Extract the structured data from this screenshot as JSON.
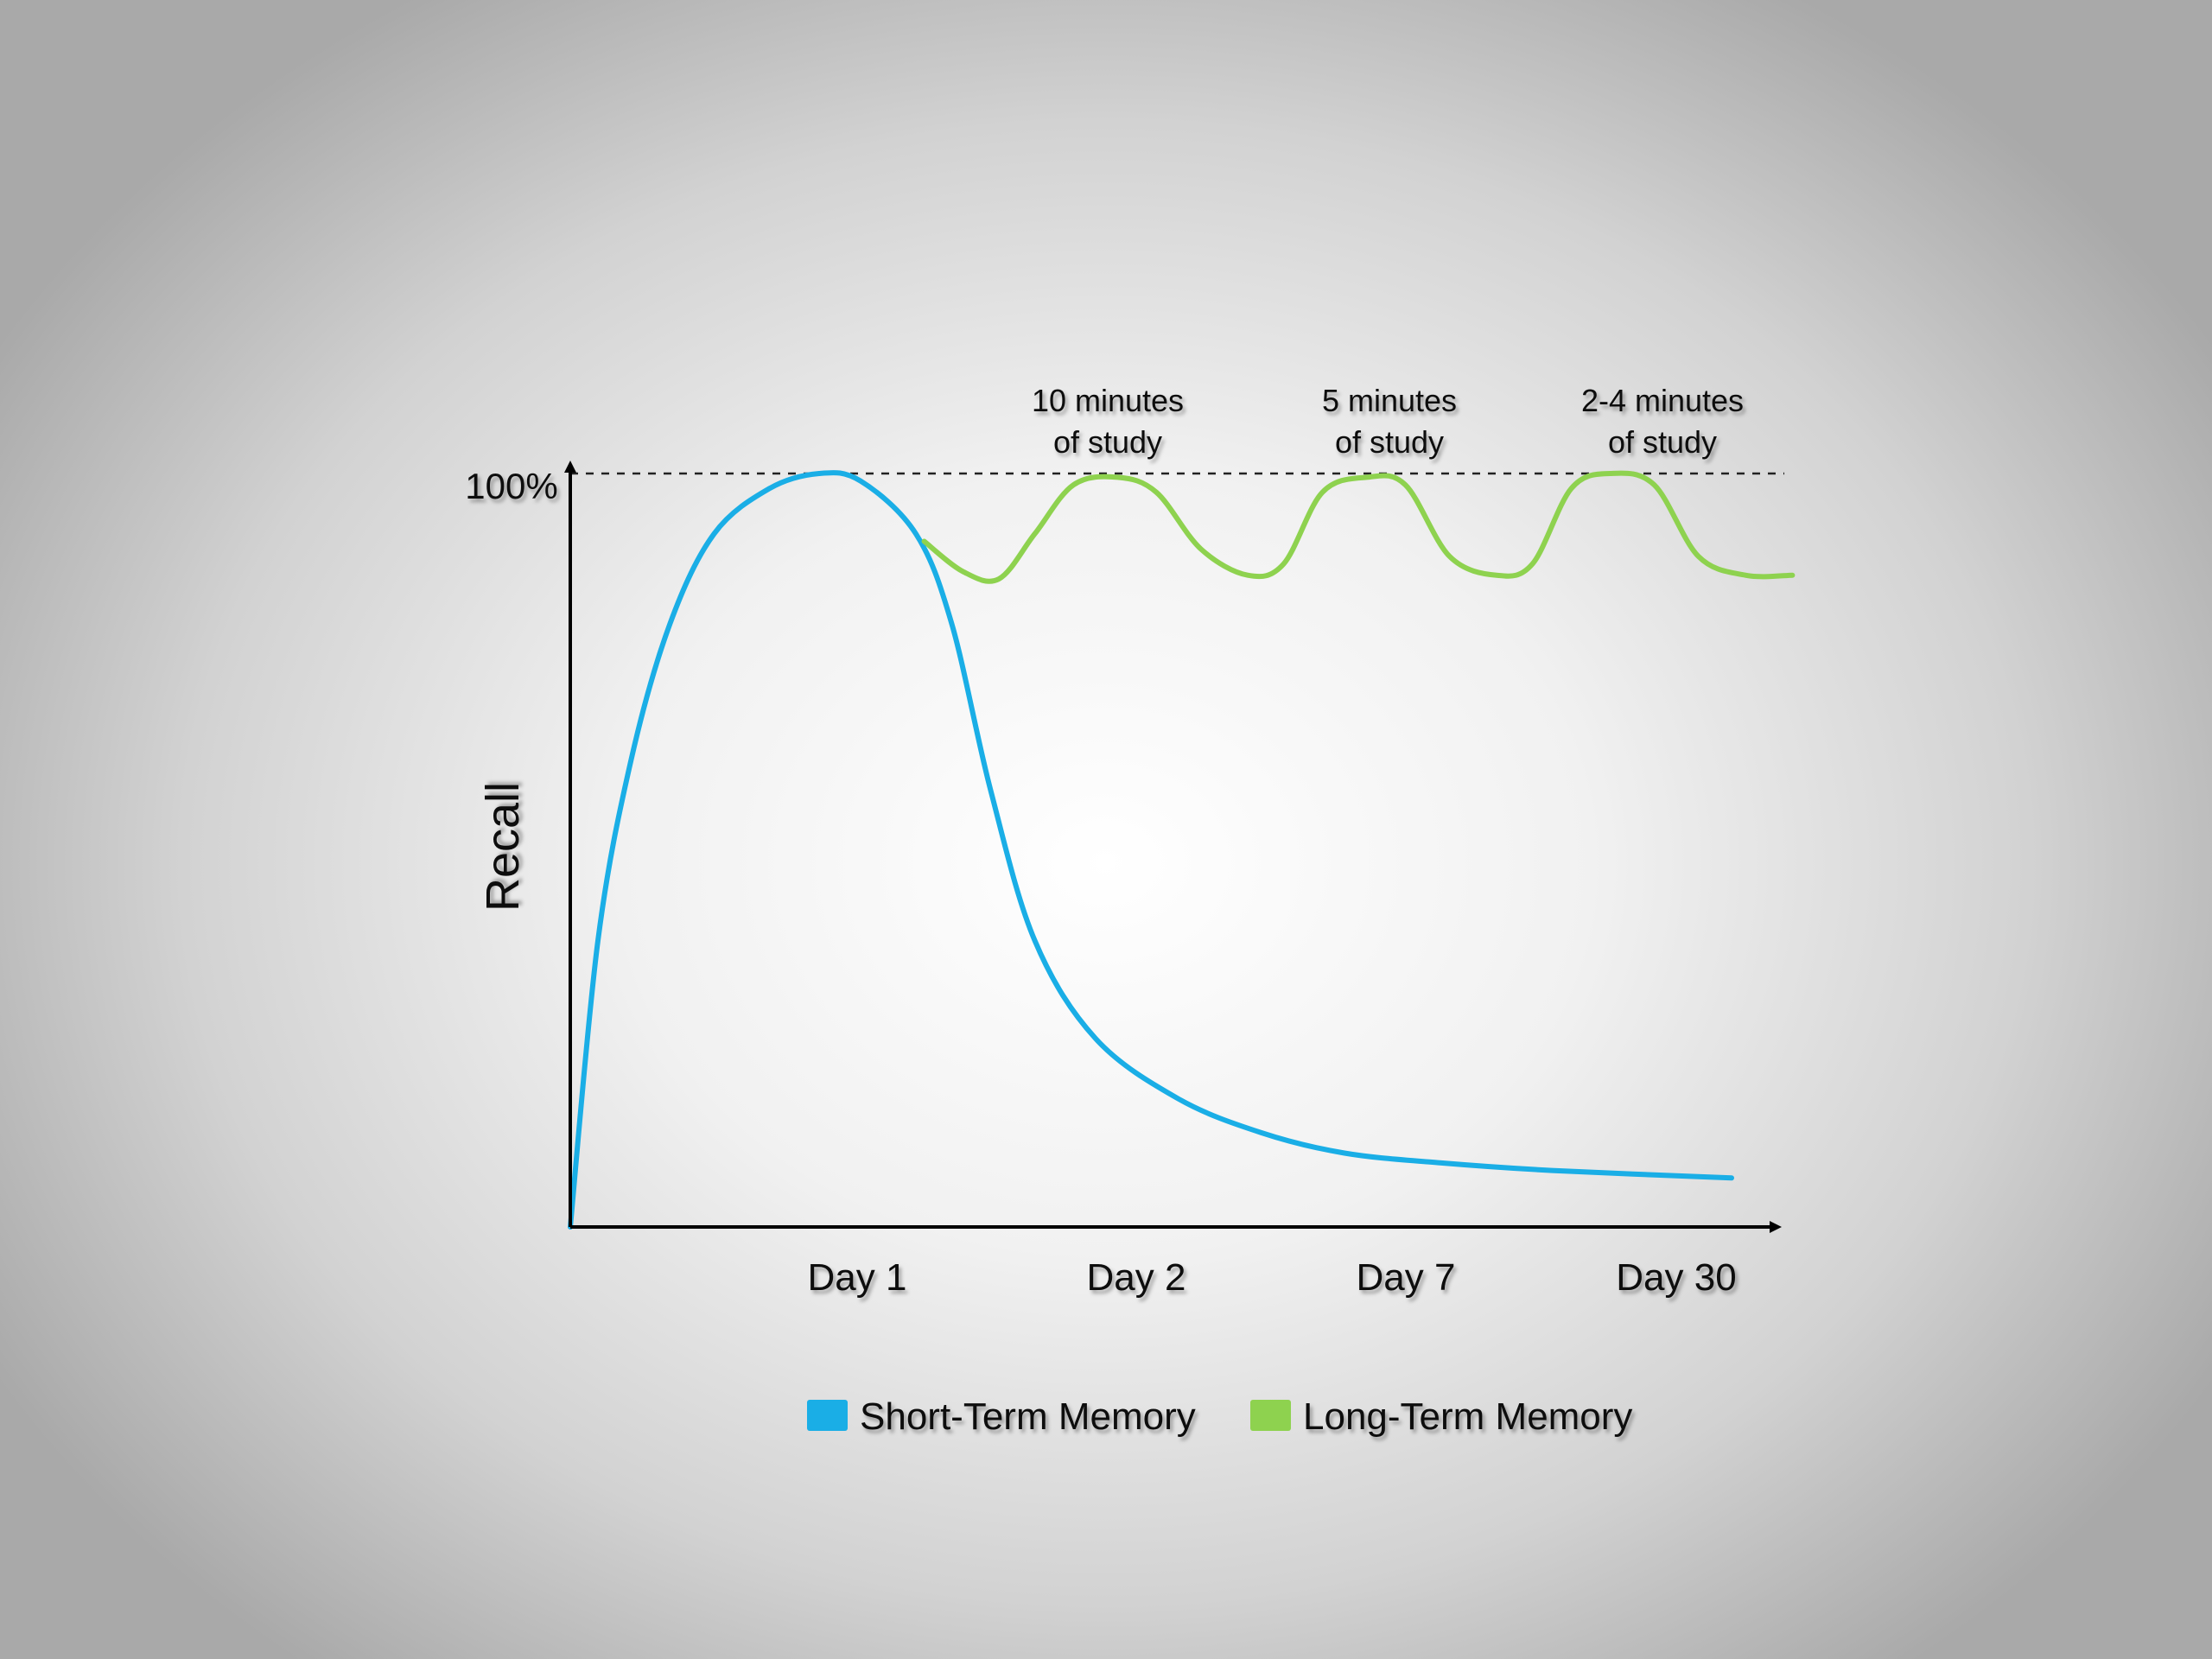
{
  "chart_data": {
    "type": "line",
    "ylabel": "Recall",
    "y_tick_label": "100%",
    "ylim": [
      0,
      100
    ],
    "x_tick_labels": [
      "Day 1",
      "Day 2",
      "Day 7",
      "Day 30"
    ],
    "reference_line": {
      "value": 100,
      "style": "dashed"
    },
    "annotations": [
      {
        "lines": [
          "10 minutes",
          "of study"
        ]
      },
      {
        "lines": [
          "5 minutes",
          "of study"
        ]
      },
      {
        "lines": [
          "2-4 minutes",
          "of study"
        ]
      }
    ],
    "series": [
      {
        "name": "Short-Term Memory",
        "color": "#1aaee6",
        "points": [
          [
            0.0,
            0
          ],
          [
            0.1,
            38
          ],
          [
            0.22,
            62
          ],
          [
            0.36,
            80
          ],
          [
            0.52,
            92
          ],
          [
            0.72,
            98
          ],
          [
            0.9,
            100
          ],
          [
            1.05,
            99
          ],
          [
            1.25,
            92
          ],
          [
            1.38,
            80
          ],
          [
            1.52,
            58
          ],
          [
            1.68,
            38
          ],
          [
            1.9,
            25
          ],
          [
            2.2,
            17
          ],
          [
            2.5,
            12.5
          ],
          [
            2.8,
            9.8
          ],
          [
            3.15,
            8.5
          ],
          [
            3.55,
            7.5
          ],
          [
            4.2,
            6.5
          ]
        ]
      },
      {
        "name": "Long-Term Memory",
        "color": "#8ed24f",
        "points": [
          [
            1.28,
            91
          ],
          [
            1.42,
            87
          ],
          [
            1.55,
            86
          ],
          [
            1.68,
            92
          ],
          [
            1.82,
            98.5
          ],
          [
            1.98,
            99.5
          ],
          [
            2.12,
            97.5
          ],
          [
            2.28,
            90
          ],
          [
            2.45,
            86.5
          ],
          [
            2.58,
            88
          ],
          [
            2.72,
            97.5
          ],
          [
            2.88,
            99.5
          ],
          [
            3.02,
            98.5
          ],
          [
            3.18,
            89
          ],
          [
            3.35,
            86.5
          ],
          [
            3.48,
            88
          ],
          [
            3.62,
            98
          ],
          [
            3.76,
            100
          ],
          [
            3.92,
            98.5
          ],
          [
            4.08,
            89
          ],
          [
            4.25,
            86.5
          ],
          [
            4.42,
            86.5
          ]
        ]
      }
    ],
    "legend": {
      "position": "bottom"
    }
  }
}
